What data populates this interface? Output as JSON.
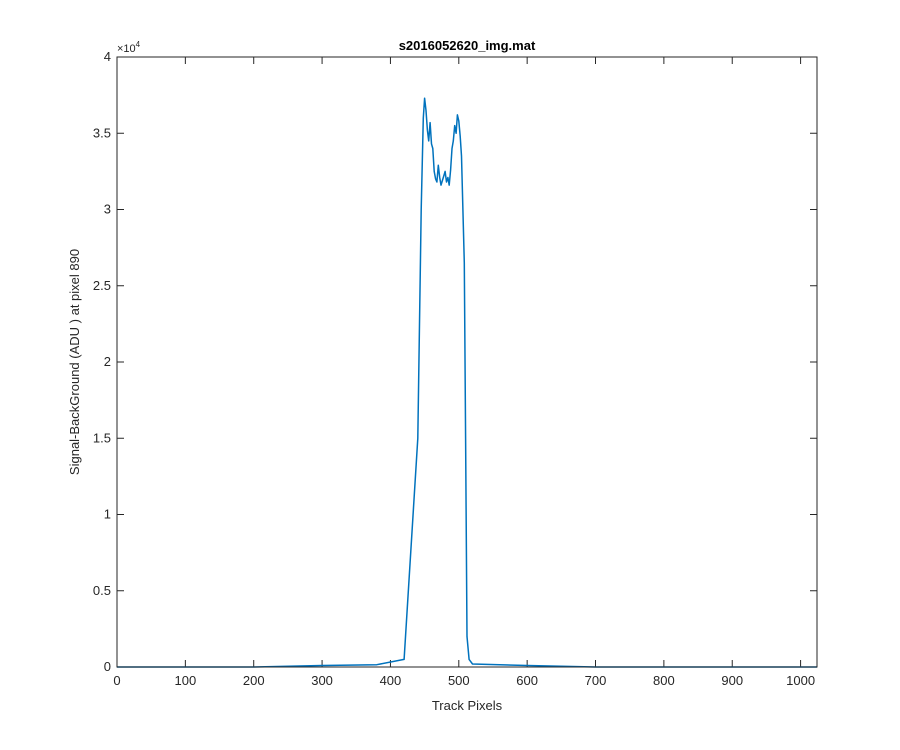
{
  "chart_data": {
    "type": "line",
    "title": "s2016052620_img.mat",
    "xlabel": "Track Pixels",
    "ylabel": "Signal-BackGround (ADU ) at pixel 890",
    "xlim": [
      0,
      1024
    ],
    "ylim": [
      0,
      40000
    ],
    "x_ticks": [
      0,
      100,
      200,
      300,
      400,
      500,
      600,
      700,
      800,
      900,
      1000
    ],
    "x_tick_labels": [
      "0",
      "100",
      "200",
      "300",
      "400",
      "500",
      "600",
      "700",
      "800",
      "900",
      "1000"
    ],
    "y_ticks": [
      0,
      5000,
      10000,
      15000,
      20000,
      25000,
      30000,
      35000,
      40000
    ],
    "y_tick_labels": [
      "0",
      "0.5",
      "1",
      "1.5",
      "2",
      "2.5",
      "3",
      "3.5",
      "4"
    ],
    "y_multiplier": "×10",
    "y_multiplier_exponent": "4",
    "grid": false,
    "line_color": "#0072BD",
    "series": [
      {
        "x": [
          0,
          100,
          200,
          300,
          380,
          420,
          440,
          445,
          448,
          450,
          452,
          454,
          456,
          458,
          460,
          462,
          464,
          466,
          468,
          470,
          472,
          474,
          476,
          478,
          480,
          482,
          484,
          486,
          488,
          490,
          492,
          494,
          496,
          498,
          500,
          502,
          504,
          506,
          508,
          510,
          512,
          515,
          520,
          600,
          700,
          800,
          900,
          1024
        ],
        "y": [
          0,
          0,
          0,
          100,
          150,
          500,
          15000,
          30000,
          36000,
          37300,
          36500,
          35200,
          34500,
          35700,
          34300,
          34000,
          32500,
          32000,
          31800,
          32900,
          32100,
          31600,
          31900,
          32200,
          32500,
          31800,
          32100,
          31600,
          32600,
          34000,
          34500,
          35500,
          35000,
          36200,
          35800,
          34800,
          33500,
          30000,
          26500,
          15000,
          2000,
          500,
          200,
          100,
          0,
          0,
          0,
          0
        ]
      }
    ]
  }
}
